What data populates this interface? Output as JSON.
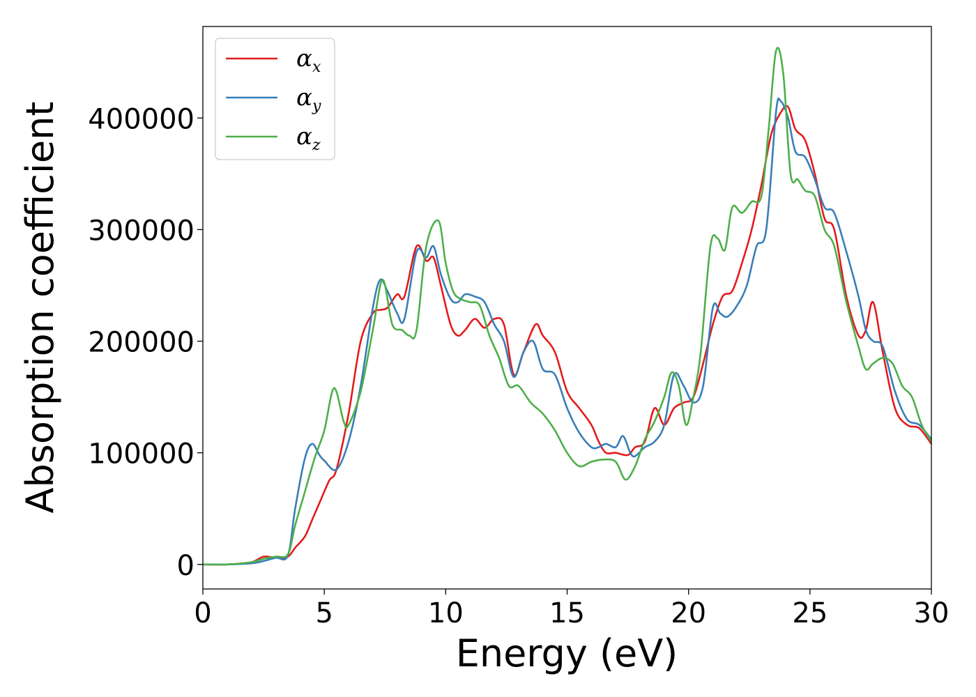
{
  "chart_data": {
    "type": "line",
    "xlabel": "Energy (eV)",
    "ylabel": "Absorption coefficient",
    "xlim": [
      0,
      30
    ],
    "ylim": [
      -22000,
      482000
    ],
    "xticks": [
      0,
      5,
      10,
      15,
      20,
      25,
      30
    ],
    "yticks": [
      0,
      100000,
      200000,
      300000,
      400000
    ],
    "grid": false,
    "legend_position": "top-left",
    "series": [
      {
        "name": "αx",
        "symbol": "α",
        "subscript": "x",
        "color": "#e41a1c",
        "x": [
          0,
          1,
          2,
          2.5,
          3,
          3.5,
          3.8,
          4.2,
          4.5,
          4.8,
          5.2,
          5.5,
          6,
          6.5,
          7,
          7.3,
          7.6,
          8,
          8.3,
          8.8,
          9.2,
          9.5,
          9.8,
          10.2,
          10.5,
          10.8,
          11.2,
          11.6,
          12,
          12.4,
          12.8,
          13.2,
          13.7,
          14,
          14.5,
          15,
          15.5,
          16,
          16.3,
          16.6,
          17,
          17.5,
          17.8,
          18.2,
          18.6,
          19,
          19.4,
          19.8,
          20.2,
          20.6,
          21,
          21.4,
          21.8,
          22.2,
          22.6,
          23,
          23.4,
          23.8,
          24.1,
          24.4,
          24.8,
          25.2,
          25.6,
          26,
          26.5,
          27,
          27.3,
          27.6,
          28,
          28.5,
          29,
          29.5,
          30
        ],
        "y": [
          0,
          0,
          2000,
          7000,
          6000,
          7000,
          15000,
          25000,
          40000,
          55000,
          75000,
          85000,
          135000,
          200000,
          225000,
          228000,
          230000,
          242000,
          240000,
          285000,
          272000,
          275000,
          250000,
          215000,
          205000,
          210000,
          220000,
          212000,
          220000,
          215000,
          170000,
          190000,
          215000,
          205000,
          190000,
          155000,
          140000,
          125000,
          110000,
          100000,
          100000,
          98000,
          105000,
          110000,
          140000,
          125000,
          140000,
          145000,
          150000,
          180000,
          215000,
          240000,
          245000,
          270000,
          300000,
          340000,
          385000,
          405000,
          410000,
          390000,
          380000,
          350000,
          310000,
          300000,
          240000,
          205000,
          210000,
          235000,
          190000,
          140000,
          125000,
          122000,
          108000
        ]
      },
      {
        "name": "αy",
        "symbol": "α",
        "subscript": "y",
        "color": "#377eb8",
        "x": [
          0,
          1,
          2,
          2.5,
          3,
          3.5,
          3.8,
          4.2,
          4.5,
          4.8,
          5,
          5.5,
          6,
          6.5,
          7,
          7.3,
          7.6,
          8,
          8.3,
          8.8,
          9.2,
          9.5,
          9.8,
          10.2,
          10.5,
          10.8,
          11.2,
          11.6,
          12,
          12.4,
          12.8,
          13.2,
          13.6,
          14,
          14.5,
          15,
          15.5,
          16,
          16.3,
          16.6,
          17,
          17.3,
          17.6,
          17.8,
          18.2,
          18.6,
          19,
          19.4,
          19.8,
          20.2,
          20.6,
          21,
          21.3,
          21.6,
          22,
          22.4,
          22.8,
          23.2,
          23.6,
          23.8,
          24.1,
          24.4,
          24.8,
          25.2,
          25.6,
          26,
          26.5,
          27,
          27.3,
          27.6,
          28,
          28.5,
          29,
          29.5,
          30
        ],
        "y": [
          0,
          0,
          1000,
          3000,
          6000,
          8000,
          50000,
          95000,
          108000,
          98000,
          93000,
          85000,
          110000,
          160000,
          230000,
          255000,
          245000,
          225000,
          220000,
          280000,
          275000,
          285000,
          260000,
          238000,
          235000,
          242000,
          240000,
          235000,
          215000,
          200000,
          168000,
          190000,
          200000,
          175000,
          170000,
          140000,
          118000,
          105000,
          105000,
          108000,
          105000,
          115000,
          100000,
          97000,
          105000,
          110000,
          125000,
          170000,
          160000,
          145000,
          160000,
          230000,
          225000,
          222000,
          232000,
          250000,
          285000,
          300000,
          405000,
          415000,
          400000,
          370000,
          365000,
          345000,
          320000,
          315000,
          280000,
          240000,
          210000,
          200000,
          195000,
          155000,
          130000,
          125000,
          112000
        ]
      },
      {
        "name": "αz",
        "symbol": "α",
        "subscript": "z",
        "color": "#4daf4a",
        "x": [
          0,
          1,
          2,
          2.5,
          3,
          3.5,
          3.8,
          4.2,
          4.6,
          5,
          5.4,
          5.8,
          6,
          6.5,
          7,
          7.4,
          7.8,
          8.2,
          8.5,
          8.8,
          9.2,
          9.7,
          10,
          10.3,
          10.6,
          11,
          11.4,
          11.8,
          12.2,
          12.6,
          13,
          13.5,
          14,
          14.5,
          15,
          15.5,
          16,
          16.5,
          17,
          17.4,
          17.8,
          18.2,
          18.6,
          19,
          19.3,
          19.6,
          19.9,
          20.2,
          20.5,
          20.9,
          21.2,
          21.5,
          21.8,
          22.2,
          22.6,
          23,
          23.3,
          23.6,
          23.9,
          24.2,
          24.5,
          24.8,
          25.2,
          25.6,
          26,
          26.5,
          27,
          27.3,
          27.6,
          28,
          28.4,
          28.8,
          29.2,
          29.6,
          30
        ],
        "y": [
          0,
          0,
          2000,
          5000,
          7000,
          9000,
          35000,
          65000,
          95000,
          120000,
          158000,
          128000,
          125000,
          155000,
          210000,
          255000,
          215000,
          210000,
          205000,
          210000,
          285000,
          308000,
          270000,
          245000,
          238000,
          235000,
          232000,
          205000,
          185000,
          160000,
          160000,
          145000,
          135000,
          120000,
          100000,
          88000,
          92000,
          94000,
          92000,
          76000,
          88000,
          112000,
          128000,
          150000,
          172000,
          160000,
          125000,
          150000,
          190000,
          285000,
          292000,
          282000,
          320000,
          315000,
          325000,
          330000,
          390000,
          460000,
          440000,
          350000,
          345000,
          335000,
          330000,
          300000,
          285000,
          235000,
          195000,
          175000,
          180000,
          185000,
          180000,
          160000,
          150000,
          125000,
          110000
        ]
      }
    ]
  }
}
